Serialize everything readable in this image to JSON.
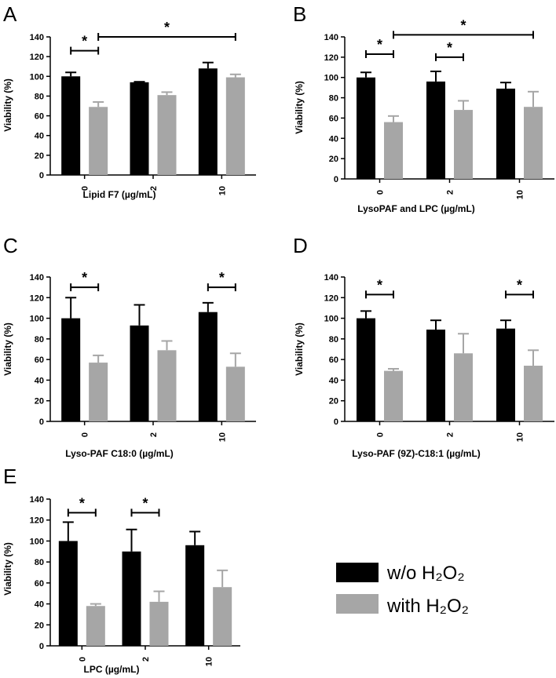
{
  "legend": [
    {
      "label": "w/o H₂O₂",
      "color": "#000000"
    },
    {
      "label": "with H₂O₂",
      "color": "#a6a6a6"
    }
  ],
  "chart_data": [
    {
      "panel": "A",
      "type": "bar",
      "xlabel": "Lipid F7 (µg/mL)",
      "ylabel": "Viability (%)",
      "ylim": [
        0,
        140
      ],
      "yticks": [
        0,
        20,
        40,
        60,
        80,
        100,
        120,
        140
      ],
      "categories": [
        "0",
        "2",
        "10"
      ],
      "series": [
        {
          "name": "w/o H₂O₂",
          "values": [
            100,
            94,
            108
          ],
          "errors": [
            4,
            0.5,
            6
          ]
        },
        {
          "name": "with H₂O₂",
          "values": [
            69,
            81,
            99
          ],
          "errors": [
            5,
            3,
            3
          ]
        }
      ],
      "significance": [
        {
          "text": "*",
          "from": {
            "cat": 0,
            "series": 0
          },
          "to": {
            "cat": 0,
            "series": 1
          },
          "level": 126
        },
        {
          "text": "*",
          "from": {
            "cat": 0,
            "series": 1
          },
          "to": {
            "cat": 2,
            "series": 1
          },
          "level": 140
        }
      ]
    },
    {
      "panel": "B",
      "type": "bar",
      "xlabel": "LysoPAF and LPC (µg/mL)",
      "ylabel": "Viability (%)",
      "ylim": [
        0,
        140
      ],
      "yticks": [
        0,
        20,
        40,
        60,
        80,
        100,
        120,
        140
      ],
      "categories": [
        "0",
        "2",
        "10"
      ],
      "series": [
        {
          "name": "w/o H₂O₂",
          "values": [
            100,
            96,
            89
          ],
          "errors": [
            5,
            10,
            6
          ]
        },
        {
          "name": "with H₂O₂",
          "values": [
            56,
            68,
            71
          ],
          "errors": [
            6,
            9,
            15
          ]
        }
      ],
      "significance": [
        {
          "text": "*",
          "from": {
            "cat": 0,
            "series": 0
          },
          "to": {
            "cat": 0,
            "series": 1
          },
          "level": 123
        },
        {
          "text": "*",
          "from": {
            "cat": 1,
            "series": 0
          },
          "to": {
            "cat": 1,
            "series": 1
          },
          "level": 120
        },
        {
          "text": "*",
          "from": {
            "cat": 0,
            "series": 1
          },
          "to": {
            "cat": 2,
            "series": 1
          },
          "level": 142
        }
      ]
    },
    {
      "panel": "C",
      "type": "bar",
      "xlabel": "Lyso-PAF C18:0 (µg/mL)",
      "ylabel": "Viability (%)",
      "ylim": [
        0,
        140
      ],
      "yticks": [
        0,
        20,
        40,
        60,
        80,
        100,
        120,
        140
      ],
      "categories": [
        "0",
        "2",
        "10"
      ],
      "series": [
        {
          "name": "w/o H₂O₂",
          "values": [
            100,
            93,
            106
          ],
          "errors": [
            20,
            20,
            9
          ]
        },
        {
          "name": "with H₂O₂",
          "values": [
            57,
            69,
            53
          ],
          "errors": [
            7,
            9,
            13
          ]
        }
      ],
      "significance": [
        {
          "text": "*",
          "from": {
            "cat": 0,
            "series": 0
          },
          "to": {
            "cat": 0,
            "series": 1
          },
          "level": 130
        },
        {
          "text": "*",
          "from": {
            "cat": 2,
            "series": 0
          },
          "to": {
            "cat": 2,
            "series": 1
          },
          "level": 130
        }
      ]
    },
    {
      "panel": "D",
      "type": "bar",
      "xlabel": "Lyso-PAF (9Z)-C18:1 (µg/mL)",
      "ylabel": "Viability (%)",
      "ylim": [
        0,
        140
      ],
      "yticks": [
        0,
        20,
        40,
        60,
        80,
        100,
        120,
        140
      ],
      "categories": [
        "0",
        "2",
        "10"
      ],
      "series": [
        {
          "name": "w/o H₂O₂",
          "values": [
            100,
            89,
            90
          ],
          "errors": [
            7,
            9,
            8
          ]
        },
        {
          "name": "with H₂O₂",
          "values": [
            49,
            66,
            54
          ],
          "errors": [
            2,
            19,
            15
          ]
        }
      ],
      "significance": [
        {
          "text": "*",
          "from": {
            "cat": 0,
            "series": 0
          },
          "to": {
            "cat": 0,
            "series": 1
          },
          "level": 123
        },
        {
          "text": "*",
          "from": {
            "cat": 2,
            "series": 0
          },
          "to": {
            "cat": 2,
            "series": 1
          },
          "level": 123
        }
      ]
    },
    {
      "panel": "E",
      "type": "bar",
      "xlabel": "LPC (µg/mL)",
      "ylabel": "Viability (%)",
      "ylim": [
        0,
        140
      ],
      "yticks": [
        0,
        20,
        40,
        60,
        80,
        100,
        120,
        140
      ],
      "categories": [
        "0",
        "2",
        "10"
      ],
      "series": [
        {
          "name": "w/o H₂O₂",
          "values": [
            100,
            90,
            96
          ],
          "errors": [
            18,
            21,
            13
          ]
        },
        {
          "name": "with H₂O₂",
          "values": [
            38,
            42,
            56
          ],
          "errors": [
            2,
            10,
            16
          ]
        }
      ],
      "significance": [
        {
          "text": "*",
          "from": {
            "cat": 0,
            "series": 0
          },
          "to": {
            "cat": 0,
            "series": 1
          },
          "level": 127
        },
        {
          "text": "*",
          "from": {
            "cat": 1,
            "series": 0
          },
          "to": {
            "cat": 1,
            "series": 1
          },
          "level": 127
        }
      ]
    }
  ]
}
